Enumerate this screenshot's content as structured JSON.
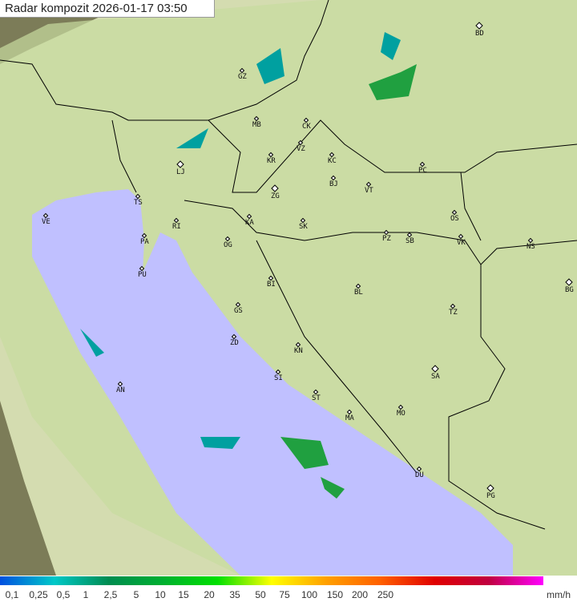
{
  "title": "Radar kompozit  2026-01-17   03:50",
  "legend": {
    "unit": "mm/h",
    "ticks": [
      "0,1",
      "0,25",
      "0,5",
      "1",
      "2,5",
      "5",
      "10",
      "15",
      "20",
      "35",
      "50",
      "75",
      "100",
      "150",
      "200",
      "250"
    ],
    "colors": [
      "#0050e0",
      "#00c8c8",
      "#008c50",
      "#00b030",
      "#00e000",
      "#ffff00",
      "#ffa000",
      "#ff6000",
      "#e00000",
      "#c00040",
      "#ff00ff"
    ]
  },
  "colors": {
    "sea": "#c0c0ff",
    "land": "#d8e0a8",
    "outside": "#8a8a60",
    "border": "#000000"
  },
  "cities": [
    "BD",
    "GZ",
    "MB",
    "CK",
    "VZ",
    "KR",
    "KC",
    "LJ",
    "BJ",
    "ZG",
    "VT",
    "PC",
    "TS",
    "VE",
    "RI",
    "KA",
    "SK",
    "OS",
    "PA",
    "OG",
    "PZ",
    "SB",
    "VK",
    "NS",
    "PU",
    "BI",
    "BL",
    "BG",
    "GS",
    "TZ",
    "ZD",
    "KN",
    "SA",
    "SI",
    "AN",
    "ST",
    "MA",
    "MO",
    "DU",
    "PG"
  ]
}
